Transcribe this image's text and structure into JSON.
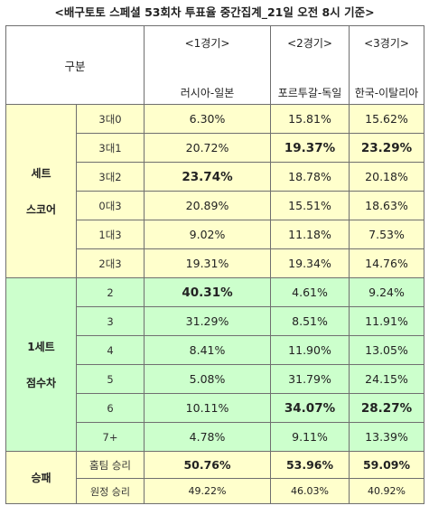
{
  "title": "<배구토토 스페셜 53회차 투표율 중간집계_21일 오전 8시 기준>",
  "header": {
    "category_label": "구분",
    "games": [
      {
        "number": "<1경기>",
        "teams": "러시아-일본"
      },
      {
        "number": "<2경기>",
        "teams": "포르투갈-독일"
      },
      {
        "number": "<3경기>",
        "teams": "한국-이탈리아"
      }
    ]
  },
  "set_score": {
    "label_line1": "세트",
    "label_line2": "스코어",
    "rows": [
      {
        "label": "3대0",
        "values": [
          "6.30%",
          "15.81%",
          "15.62%"
        ],
        "bold": [
          false,
          false,
          false
        ]
      },
      {
        "label": "3대1",
        "values": [
          "20.72%",
          "19.37%",
          "23.29%"
        ],
        "bold": [
          false,
          true,
          true
        ]
      },
      {
        "label": "3대2",
        "values": [
          "23.74%",
          "18.78%",
          "20.18%"
        ],
        "bold": [
          true,
          false,
          false
        ]
      },
      {
        "label": "0대3",
        "values": [
          "20.89%",
          "15.51%",
          "18.63%"
        ],
        "bold": [
          false,
          false,
          false
        ]
      },
      {
        "label": "1대3",
        "values": [
          "9.02%",
          "11.18%",
          "7.53%"
        ],
        "bold": [
          false,
          false,
          false
        ]
      },
      {
        "label": "2대3",
        "values": [
          "19.31%",
          "19.34%",
          "14.76%"
        ],
        "bold": [
          false,
          false,
          false
        ]
      }
    ]
  },
  "point_diff": {
    "label_line1": "1세트",
    "label_line2": "점수차",
    "rows": [
      {
        "label": "2",
        "values": [
          "40.31%",
          "4.61%",
          "9.24%"
        ],
        "bold": [
          true,
          false,
          false
        ]
      },
      {
        "label": "3",
        "values": [
          "31.29%",
          "8.51%",
          "11.91%"
        ],
        "bold": [
          false,
          false,
          false
        ]
      },
      {
        "label": "4",
        "values": [
          "8.41%",
          "11.90%",
          "13.05%"
        ],
        "bold": [
          false,
          false,
          false
        ]
      },
      {
        "label": "5",
        "values": [
          "5.08%",
          "31.79%",
          "24.15%"
        ],
        "bold": [
          false,
          false,
          false
        ]
      },
      {
        "label": "6",
        "values": [
          "10.11%",
          "34.07%",
          "28.27%"
        ],
        "bold": [
          false,
          true,
          true
        ]
      },
      {
        "label": "7+",
        "values": [
          "4.78%",
          "9.11%",
          "13.39%"
        ],
        "bold": [
          false,
          false,
          false
        ]
      }
    ]
  },
  "win_loss": {
    "label": "승패",
    "rows": [
      {
        "label": "홈팀 승리",
        "values": [
          "50.76%",
          "53.96%",
          "59.09%"
        ]
      },
      {
        "label": "원정 승리",
        "values": [
          "49.22%",
          "46.03%",
          "40.92%"
        ]
      }
    ]
  }
}
